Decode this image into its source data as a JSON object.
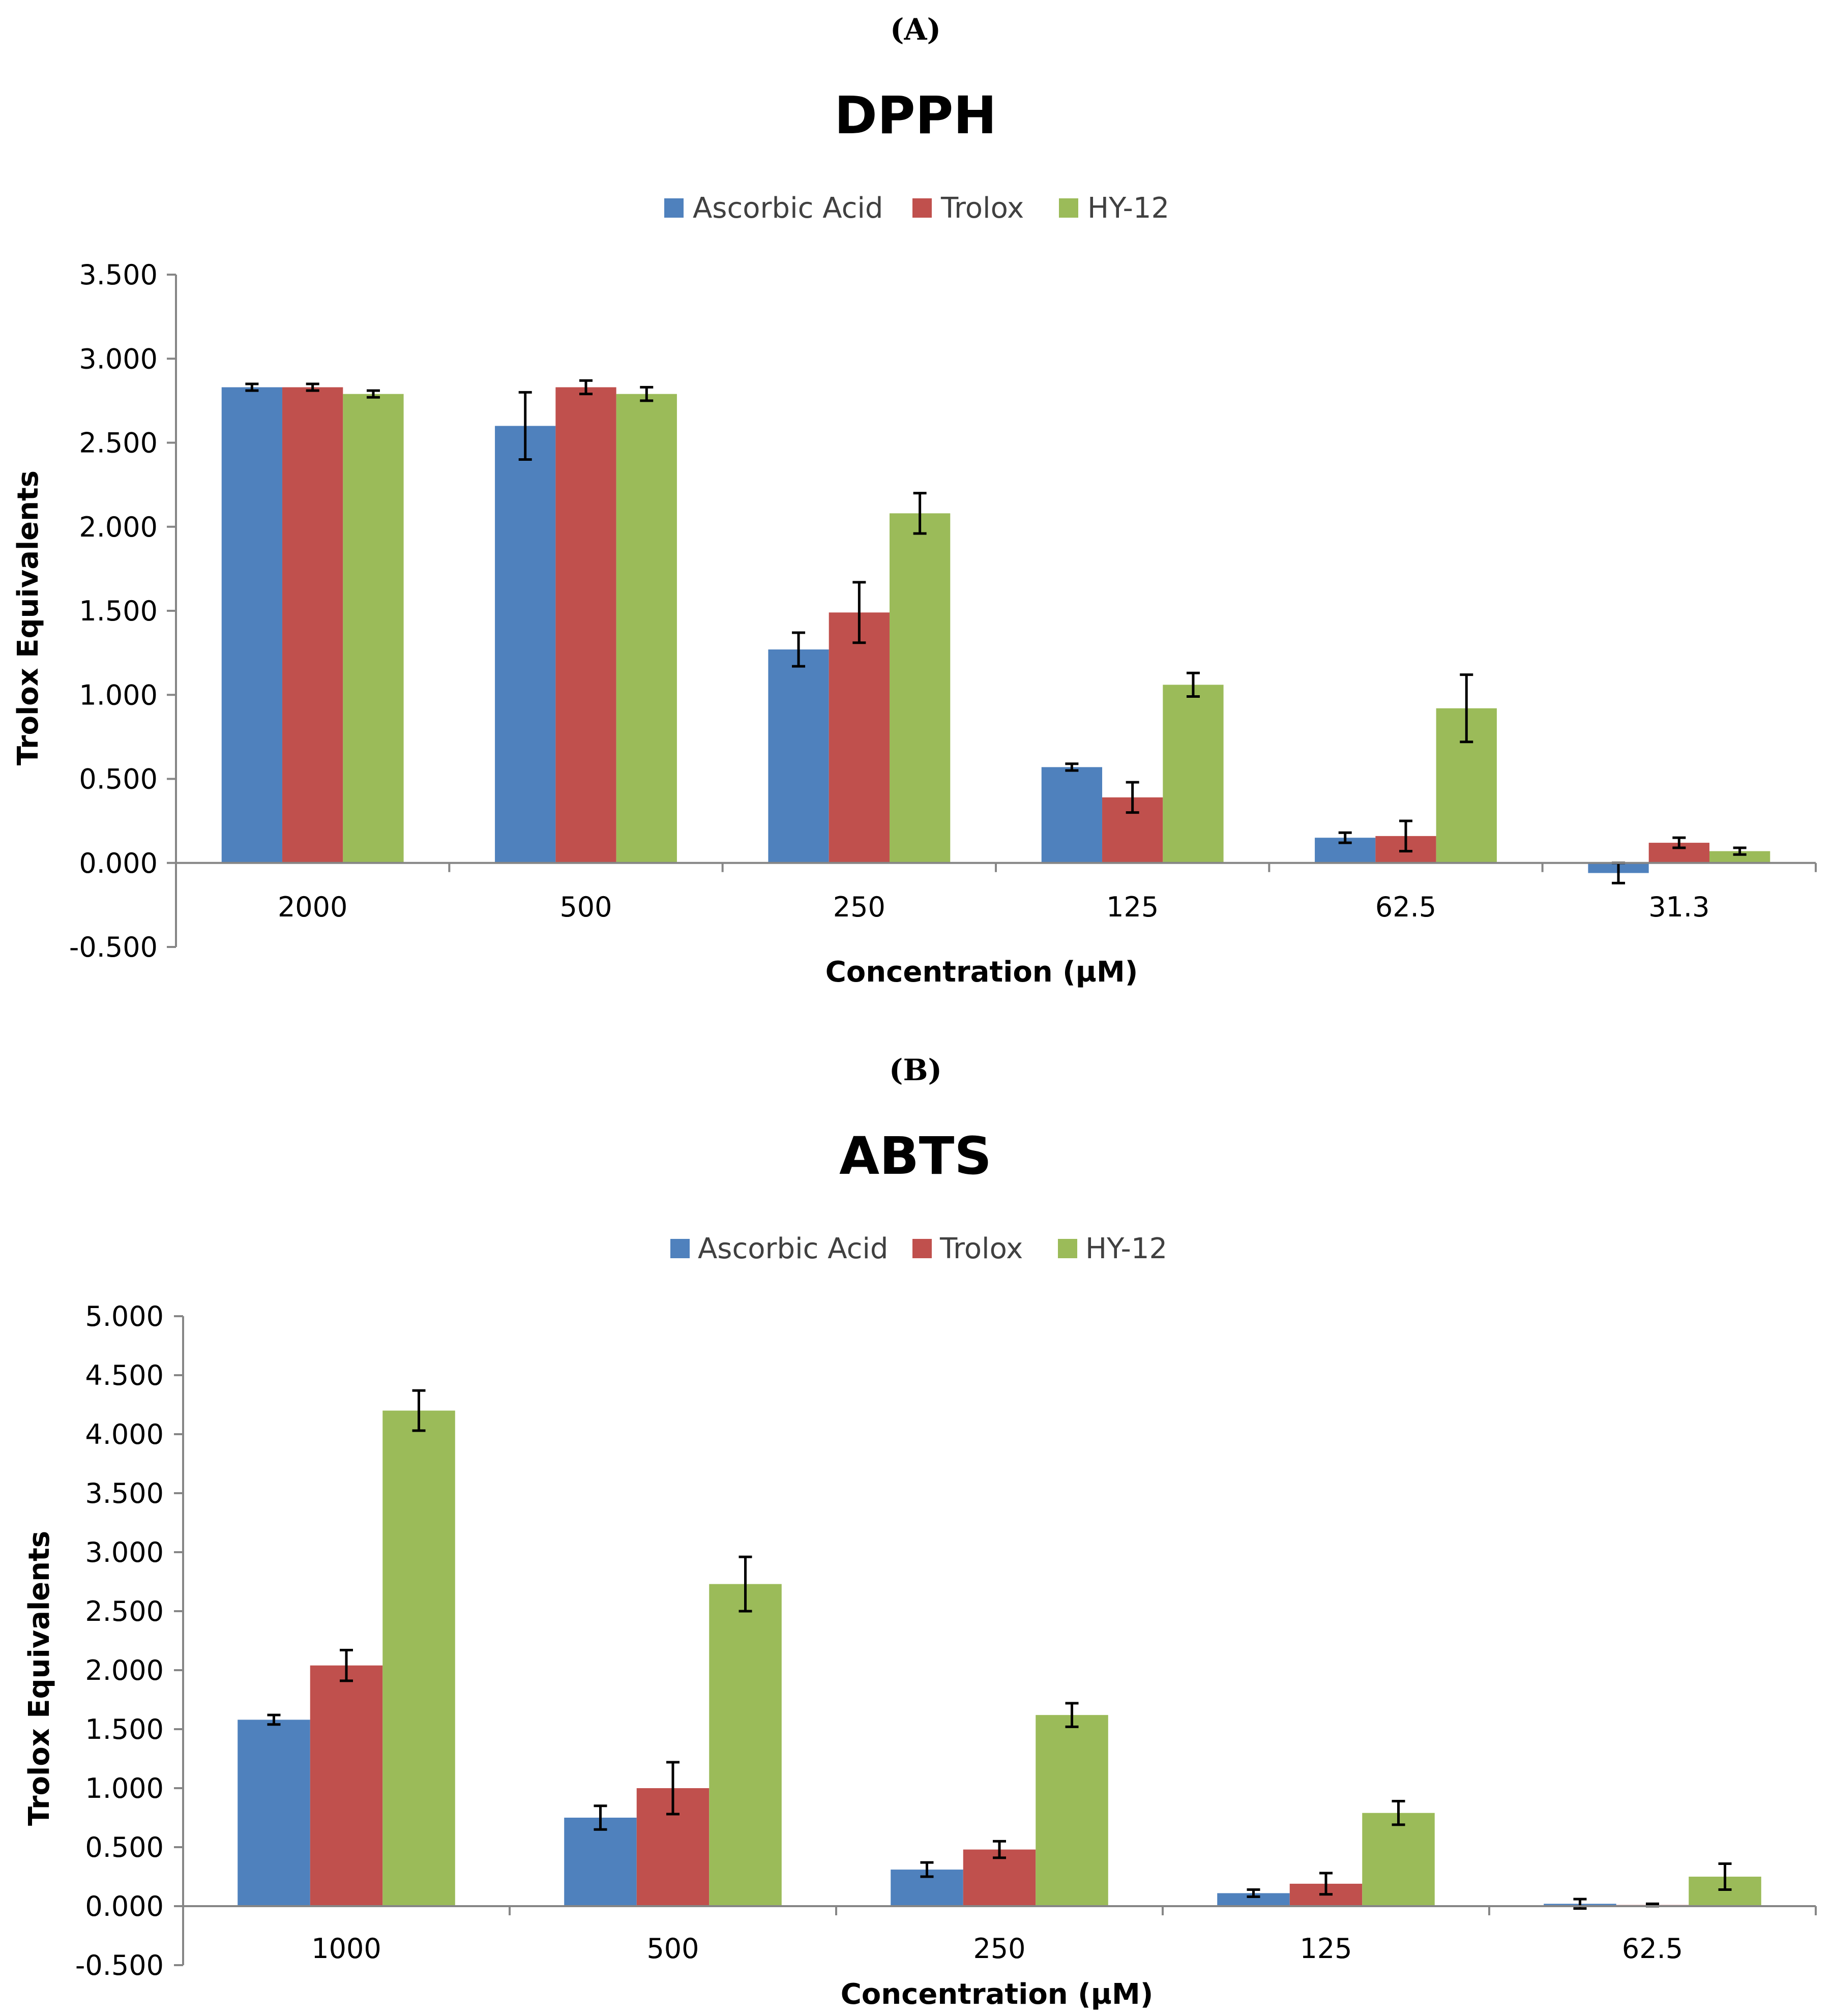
{
  "colors": {
    "ascorbic": "#4F81BD",
    "trolox": "#C0504D",
    "hy12": "#9BBB59"
  },
  "chart_data": [
    {
      "panel_label": "(A)",
      "type": "bar",
      "title": "DPPH",
      "xlabel": "Concentration (µM)",
      "ylabel": "Trolox Equivalents",
      "ylim": [
        -0.5,
        3.5
      ],
      "yticks": [
        "3.500",
        "3.000",
        "2.500",
        "2.000",
        "1.500",
        "1.000",
        "0.500",
        "0.000",
        "-0.500"
      ],
      "ytick_values": [
        3.5,
        3.0,
        2.5,
        2.0,
        1.5,
        1.0,
        0.5,
        0.0,
        -0.5
      ],
      "categories": [
        "2000",
        "500",
        "250",
        "125",
        "62.5",
        "31.3"
      ],
      "legend": {
        "placement": "top-center"
      },
      "series": [
        {
          "name": "Ascorbic Acid",
          "values": [
            2.83,
            2.6,
            1.27,
            0.57,
            0.15,
            -0.06
          ],
          "errors": [
            0.02,
            0.2,
            0.1,
            0.02,
            0.03,
            0.06
          ]
        },
        {
          "name": "Trolox",
          "values": [
            2.83,
            2.83,
            1.49,
            0.39,
            0.16,
            0.12
          ],
          "errors": [
            0.02,
            0.04,
            0.18,
            0.09,
            0.09,
            0.03
          ]
        },
        {
          "name": "HY-12",
          "values": [
            2.79,
            2.79,
            2.08,
            1.06,
            0.92,
            0.07
          ],
          "errors": [
            0.02,
            0.04,
            0.12,
            0.07,
            0.2,
            0.02
          ]
        }
      ]
    },
    {
      "panel_label": "(B)",
      "type": "bar",
      "title": "ABTS",
      "xlabel": "Concentration (µM)",
      "ylabel": "Trolox Equivalents",
      "ylim": [
        -0.5,
        5.0
      ],
      "yticks": [
        "5.000",
        "4.500",
        "4.000",
        "3.500",
        "3.000",
        "2.500",
        "2.000",
        "1.500",
        "1.000",
        "0.500",
        "0.000",
        "-0.500"
      ],
      "ytick_values": [
        5.0,
        4.5,
        4.0,
        3.5,
        3.0,
        2.5,
        2.0,
        1.5,
        1.0,
        0.5,
        0.0,
        -0.5
      ],
      "categories": [
        "1000",
        "500",
        "250",
        "125",
        "62.5"
      ],
      "legend": {
        "placement": "top-center"
      },
      "series": [
        {
          "name": "Ascorbic Acid",
          "values": [
            1.58,
            0.75,
            0.31,
            0.11,
            0.02
          ],
          "errors": [
            0.04,
            0.1,
            0.06,
            0.03,
            0.04
          ]
        },
        {
          "name": "Trolox",
          "values": [
            2.04,
            1.0,
            0.48,
            0.19,
            0.01
          ],
          "errors": [
            0.13,
            0.22,
            0.07,
            0.09,
            0.01
          ]
        },
        {
          "name": "HY-12",
          "values": [
            4.2,
            2.73,
            1.62,
            0.79,
            0.25
          ],
          "errors": [
            0.17,
            0.23,
            0.1,
            0.1,
            0.11
          ]
        }
      ]
    }
  ]
}
